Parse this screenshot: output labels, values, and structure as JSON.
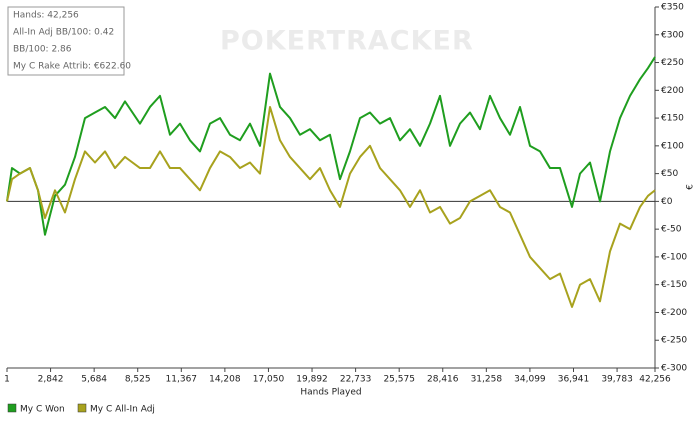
{
  "chart_data": {
    "type": "line",
    "info": [
      "Hands: 42,256",
      "All-In Adj BB/100: 0.42",
      "BB/100: 2.86",
      "My C Rake Attrib: €622.60"
    ],
    "watermark": "POKERTRACKER",
    "x_label": "Hands Played",
    "y_label": "€",
    "x": [
      1,
      326,
      848,
      1500,
      2022,
      2478,
      3130,
      3782,
      4434,
      5086,
      5738,
      6391,
      7043,
      7695,
      8673,
      9325,
      9977,
      10629,
      11281,
      11933,
      12586,
      13238,
      13890,
      14542,
      15194,
      15846,
      16498,
      17150,
      17802,
      18454,
      19106,
      19759,
      20411,
      21063,
      21715,
      22367,
      23019,
      23671,
      24323,
      24975,
      25627,
      26279,
      26932,
      27584,
      28236,
      28888,
      29540,
      30192,
      30844,
      31496,
      32148,
      32801,
      33453,
      34105,
      34757,
      35409,
      36061,
      36844,
      37366,
      38018,
      38670,
      39322,
      39974,
      40626,
      41279,
      41800,
      42256
    ],
    "series": [
      {
        "name": "My C Won",
        "color": "#1f9e1f",
        "values": [
          0,
          60,
          50,
          60,
          20,
          -60,
          10,
          30,
          80,
          150,
          160,
          170,
          150,
          180,
          140,
          170,
          190,
          120,
          140,
          110,
          90,
          140,
          150,
          120,
          110,
          140,
          100,
          230,
          170,
          150,
          120,
          130,
          110,
          120,
          40,
          90,
          150,
          160,
          140,
          150,
          110,
          130,
          100,
          140,
          190,
          100,
          140,
          160,
          130,
          190,
          150,
          120,
          170,
          100,
          90,
          60,
          60,
          -10,
          50,
          70,
          0,
          90,
          150,
          190,
          220,
          240,
          260
        ]
      },
      {
        "name": "My C All-In Adj",
        "color": "#a8a21e",
        "values": [
          0,
          40,
          50,
          60,
          20,
          -30,
          20,
          -20,
          40,
          90,
          70,
          90,
          60,
          80,
          60,
          60,
          90,
          60,
          60,
          40,
          20,
          60,
          90,
          80,
          60,
          70,
          50,
          170,
          110,
          80,
          60,
          40,
          60,
          20,
          -10,
          50,
          80,
          100,
          60,
          40,
          20,
          -10,
          20,
          -20,
          -10,
          -40,
          -30,
          0,
          10,
          20,
          -10,
          -20,
          -60,
          -100,
          -120,
          -140,
          -130,
          -190,
          -150,
          -140,
          -180,
          -90,
          -40,
          -50,
          -10,
          10,
          20
        ]
      }
    ],
    "xlim": [
      1,
      42256
    ],
    "xticks": [
      1,
      {
        "value": 2842,
        "label": "2,842"
      },
      {
        "value": 5684,
        "label": "5,684"
      },
      {
        "value": 8525,
        "label": "8,525"
      },
      {
        "value": 11367,
        "label": "11,367"
      },
      {
        "value": 14208,
        "label": "14,208"
      },
      {
        "value": 17050,
        "label": "17,050"
      },
      {
        "value": 19892,
        "label": "19,892"
      },
      {
        "value": 22733,
        "label": "22,733"
      },
      {
        "value": 25575,
        "label": "25,575"
      },
      {
        "value": 28416,
        "label": "28,416"
      },
      {
        "value": 31258,
        "label": "31,258"
      },
      {
        "value": 34099,
        "label": "34,099"
      },
      {
        "value": 36941,
        "label": "36,941"
      },
      {
        "value": 39783,
        "label": "39,783"
      },
      {
        "value": 42256,
        "label": "42,256"
      }
    ],
    "ylim": [
      -300,
      350
    ],
    "yticks": [
      {
        "value": -300,
        "label": "€-300"
      },
      {
        "value": -250,
        "label": "€-250"
      },
      {
        "value": -200,
        "label": "€-200"
      },
      {
        "value": -150,
        "label": "€-150"
      },
      {
        "value": -100,
        "label": "€-100"
      },
      {
        "value": -50,
        "label": "€-50"
      },
      {
        "value": 0,
        "label": "€0"
      },
      {
        "value": 50,
        "label": "€50"
      },
      {
        "value": 100,
        "label": "€100"
      },
      {
        "value": 150,
        "label": "€150"
      },
      {
        "value": 200,
        "label": "€200"
      },
      {
        "value": 250,
        "label": "€250"
      },
      {
        "value": 300,
        "label": "€300"
      },
      {
        "value": 350,
        "label": "€350"
      }
    ],
    "y_axis_side": "right",
    "grid": false
  }
}
